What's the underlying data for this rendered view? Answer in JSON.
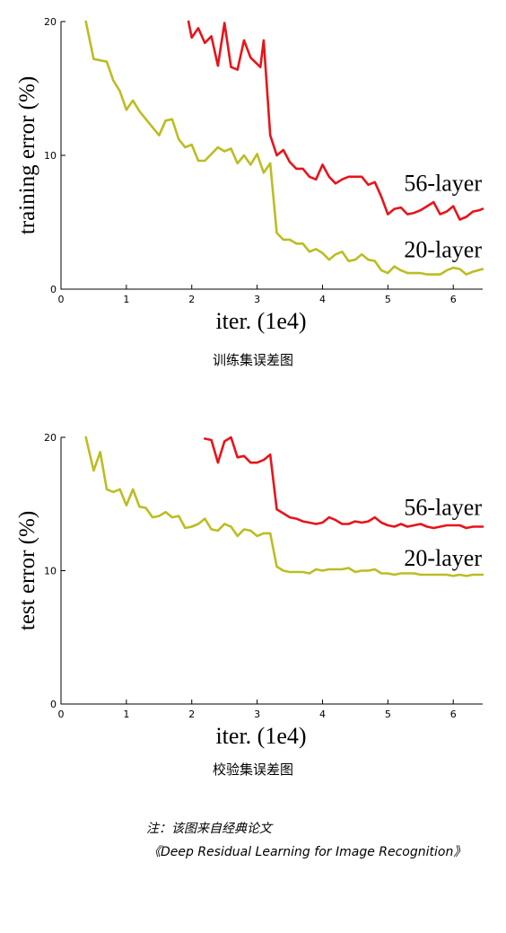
{
  "chart_data": [
    {
      "type": "line",
      "title": "",
      "xlabel": "iter. (1e4)",
      "ylabel": "training error (%)",
      "xlim": [
        0,
        6.45
      ],
      "ylim": [
        0,
        20
      ],
      "xticks": [
        0,
        1,
        2,
        3,
        4,
        5,
        6
      ],
      "yticks": [
        0,
        10,
        20
      ],
      "grid": false,
      "series": [
        {
          "name": "56-layer",
          "color": "#e8141a",
          "x": [
            1.95,
            2.0,
            2.1,
            2.2,
            2.3,
            2.4,
            2.5,
            2.6,
            2.7,
            2.8,
            2.9,
            3.05,
            3.1,
            3.2,
            3.3,
            3.4,
            3.5,
            3.6,
            3.7,
            3.8,
            3.9,
            4.0,
            4.1,
            4.2,
            4.3,
            4.4,
            4.5,
            4.6,
            4.7,
            4.8,
            4.9,
            5.0,
            5.1,
            5.2,
            5.3,
            5.4,
            5.5,
            5.6,
            5.7,
            5.8,
            5.9,
            6.0,
            6.1,
            6.2,
            6.3,
            6.4,
            6.45
          ],
          "y": [
            20,
            18.8,
            19.5,
            18.4,
            18.9,
            16.7,
            19.9,
            16.6,
            16.4,
            18.6,
            17.3,
            16.6,
            18.6,
            11.5,
            10.0,
            10.4,
            9.5,
            9.0,
            9.0,
            8.4,
            8.2,
            9.3,
            8.4,
            7.9,
            8.2,
            8.4,
            8.4,
            8.4,
            7.8,
            8.0,
            6.9,
            5.6,
            6.0,
            6.1,
            5.6,
            5.7,
            5.9,
            6.2,
            6.5,
            5.6,
            5.8,
            6.2,
            5.2,
            5.4,
            5.8,
            5.9,
            6.0
          ],
          "label": "56-layer"
        },
        {
          "name": "20-layer",
          "color": "#bcbd22",
          "x": [
            0.38,
            0.5,
            0.7,
            0.8,
            0.9,
            1.0,
            1.1,
            1.2,
            1.3,
            1.4,
            1.5,
            1.6,
            1.7,
            1.8,
            1.9,
            2.0,
            2.1,
            2.2,
            2.3,
            2.4,
            2.5,
            2.6,
            2.7,
            2.8,
            2.9,
            3.0,
            3.1,
            3.2,
            3.3,
            3.4,
            3.5,
            3.6,
            3.7,
            3.8,
            3.9,
            4.0,
            4.1,
            4.2,
            4.3,
            4.4,
            4.5,
            4.6,
            4.7,
            4.8,
            4.9,
            5.0,
            5.1,
            5.2,
            5.3,
            5.4,
            5.5,
            5.6,
            5.7,
            5.8,
            5.9,
            6.0,
            6.1,
            6.2,
            6.3,
            6.45
          ],
          "y": [
            20,
            17.2,
            17.0,
            15.6,
            14.8,
            13.4,
            14.1,
            13.3,
            12.7,
            12.1,
            11.5,
            12.6,
            12.7,
            11.2,
            10.6,
            10.8,
            9.6,
            9.6,
            10.1,
            10.6,
            10.3,
            10.5,
            9.4,
            10.0,
            9.3,
            10.1,
            8.7,
            9.4,
            4.2,
            3.7,
            3.7,
            3.4,
            3.4,
            2.8,
            3.0,
            2.7,
            2.2,
            2.6,
            2.8,
            2.1,
            2.2,
            2.6,
            2.2,
            2.1,
            1.4,
            1.2,
            1.7,
            1.4,
            1.2,
            1.2,
            1.2,
            1.1,
            1.1,
            1.1,
            1.4,
            1.6,
            1.5,
            1.1,
            1.3,
            1.5
          ],
          "label": "20-layer"
        }
      ]
    },
    {
      "type": "line",
      "title": "",
      "xlabel": "iter. (1e4)",
      "ylabel": "test error (%)",
      "xlim": [
        0,
        6.45
      ],
      "ylim": [
        0,
        20
      ],
      "xticks": [
        0,
        1,
        2,
        3,
        4,
        5,
        6
      ],
      "yticks": [
        0,
        10,
        20
      ],
      "grid": false,
      "series": [
        {
          "name": "56-layer",
          "color": "#e8141a",
          "x": [
            2.2,
            2.3,
            2.4,
            2.5,
            2.6,
            2.7,
            2.8,
            2.9,
            3.0,
            3.1,
            3.2,
            3.3,
            3.4,
            3.5,
            3.6,
            3.7,
            3.8,
            3.9,
            4.0,
            4.1,
            4.2,
            4.3,
            4.4,
            4.5,
            4.6,
            4.7,
            4.8,
            4.9,
            5.0,
            5.1,
            5.2,
            5.3,
            5.4,
            5.5,
            5.6,
            5.7,
            5.8,
            5.9,
            6.0,
            6.1,
            6.2,
            6.3,
            6.45
          ],
          "y": [
            19.9,
            19.8,
            18.1,
            19.7,
            20.0,
            18.5,
            18.6,
            18.1,
            18.1,
            18.3,
            18.7,
            14.6,
            14.3,
            14.0,
            13.9,
            13.7,
            13.6,
            13.5,
            13.6,
            14.0,
            13.8,
            13.5,
            13.5,
            13.7,
            13.6,
            13.7,
            14.0,
            13.6,
            13.4,
            13.3,
            13.5,
            13.3,
            13.4,
            13.5,
            13.3,
            13.2,
            13.3,
            13.4,
            13.4,
            13.4,
            13.2,
            13.3,
            13.3
          ],
          "label": "56-layer"
        },
        {
          "name": "20-layer",
          "color": "#bcbd22",
          "x": [
            0.38,
            0.5,
            0.6,
            0.7,
            0.8,
            0.9,
            1.0,
            1.1,
            1.2,
            1.3,
            1.4,
            1.5,
            1.6,
            1.7,
            1.8,
            1.9,
            2.0,
            2.1,
            2.2,
            2.3,
            2.4,
            2.5,
            2.6,
            2.7,
            2.8,
            2.9,
            3.0,
            3.1,
            3.2,
            3.3,
            3.4,
            3.5,
            3.6,
            3.7,
            3.8,
            3.9,
            4.0,
            4.1,
            4.2,
            4.3,
            4.4,
            4.5,
            4.6,
            4.7,
            4.8,
            4.9,
            5.0,
            5.1,
            5.2,
            5.3,
            5.4,
            5.5,
            5.6,
            5.7,
            5.8,
            5.9,
            6.0,
            6.1,
            6.2,
            6.3,
            6.45
          ],
          "y": [
            20,
            17.5,
            18.9,
            16.1,
            15.9,
            16.1,
            14.9,
            16.1,
            14.8,
            14.7,
            14.0,
            14.1,
            14.4,
            14.0,
            14.1,
            13.2,
            13.3,
            13.5,
            13.9,
            13.1,
            13.0,
            13.5,
            13.3,
            12.6,
            13.1,
            13.0,
            12.6,
            12.8,
            12.8,
            10.3,
            10.0,
            9.9,
            9.9,
            9.9,
            9.8,
            10.1,
            10.0,
            10.1,
            10.1,
            10.1,
            10.2,
            9.9,
            10.0,
            10.0,
            10.1,
            9.8,
            9.8,
            9.7,
            9.8,
            9.8,
            9.8,
            9.7,
            9.7,
            9.7,
            9.7,
            9.7,
            9.6,
            9.7,
            9.6,
            9.7,
            9.7
          ],
          "label": "20-layer"
        }
      ]
    }
  ],
  "captions": {
    "chart1": "训练集误差图",
    "chart2": "校验集误差图"
  },
  "note": {
    "line1": "注：该图来自经典论文",
    "line2": "《Deep Residual Learning for Image Recognition》"
  }
}
